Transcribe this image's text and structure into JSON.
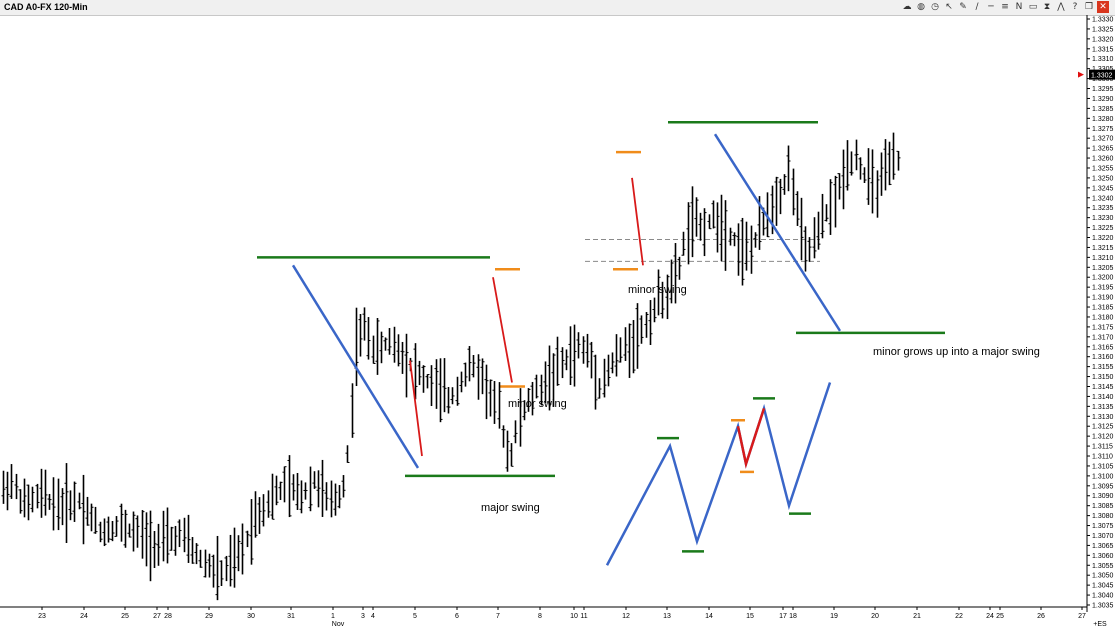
{
  "window": {
    "title": "CAD A0-FX 120-Min"
  },
  "toolbar": {
    "icons": [
      "cloud-icon",
      "globe-icon",
      "clock-icon",
      "cursor-icon",
      "pencil-icon",
      "brush-icon",
      "line-icon",
      "fib-icon",
      "text-n-icon",
      "rectangle-icon",
      "hourglass-icon",
      "chart-icon",
      "help-icon",
      "restore-icon",
      "close-icon"
    ],
    "glyphs": [
      "☁",
      "◍",
      "◷",
      "↖",
      "✎",
      "∕",
      "─",
      "≡",
      "N",
      "▭",
      "⧗",
      "⋀",
      "?",
      "❐",
      "✕"
    ]
  },
  "chart_data": {
    "type": "bar",
    "title": "CAD A0-FX 120-Min",
    "y_axis": {
      "side": "right",
      "ylim": [
        1.3035,
        1.3332
      ],
      "ticks": [
        "1.3035",
        "1.3040",
        "1.3045",
        "1.3050",
        "1.3055",
        "1.3060",
        "1.3065",
        "1.3070",
        "1.3075",
        "1.3080",
        "1.3085",
        "1.3090",
        "1.3095",
        "1.3100",
        "1.3105",
        "1.3110",
        "1.3115",
        "1.3120",
        "1.3125",
        "1.3130",
        "1.3135",
        "1.3140",
        "1.3145",
        "1.3150",
        "1.3155",
        "1.3160",
        "1.3165",
        "1.3170",
        "1.3175",
        "1.3180",
        "1.3185",
        "1.3190",
        "1.3195",
        "1.3200",
        "1.3205",
        "1.3210",
        "1.3215",
        "1.3220",
        "1.3225",
        "1.3230",
        "1.3235",
        "1.3240",
        "1.3245",
        "1.3250",
        "1.3255",
        "1.3260",
        "1.3265",
        "1.3270",
        "1.3275",
        "1.3280",
        "1.3285",
        "1.3290",
        "1.3295",
        "1.3300",
        "1.3305",
        "1.3310",
        "1.3315",
        "1.3320",
        "1.3325",
        "1.3330"
      ],
      "last_price": "1.3302"
    },
    "x_axis": {
      "ticks": [
        "23",
        "24",
        "25",
        "27",
        "28",
        "29",
        "30",
        "31",
        "1",
        "3",
        "4",
        "5",
        "6",
        "7",
        "8",
        "10",
        "11",
        "12",
        "13",
        "14",
        "15",
        "17",
        "18",
        "19",
        "20",
        "21",
        "22",
        "24",
        "25",
        "26",
        "27"
      ],
      "month_label": "Nov",
      "corner_label": "+ES"
    },
    "price_path": [
      [
        0,
        1.309
      ],
      [
        10,
        1.3098
      ],
      [
        25,
        1.3085
      ],
      [
        40,
        1.309
      ],
      [
        60,
        1.3085
      ],
      [
        80,
        1.3088
      ],
      [
        100,
        1.3072
      ],
      [
        120,
        1.3075
      ],
      [
        140,
        1.307
      ],
      [
        160,
        1.3065
      ],
      [
        180,
        1.307
      ],
      [
        200,
        1.3058
      ],
      [
        220,
        1.305
      ],
      [
        240,
        1.306
      ],
      [
        255,
        1.308
      ],
      [
        270,
        1.3088
      ],
      [
        285,
        1.3095
      ],
      [
        300,
        1.309
      ],
      [
        315,
        1.3098
      ],
      [
        330,
        1.3085
      ],
      [
        342,
        1.3092
      ],
      [
        350,
        1.312
      ],
      [
        355,
        1.3165
      ],
      [
        365,
        1.3175
      ],
      [
        375,
        1.3162
      ],
      [
        390,
        1.3168
      ],
      [
        405,
        1.316
      ],
      [
        420,
        1.315
      ],
      [
        435,
        1.3145
      ],
      [
        450,
        1.3138
      ],
      [
        460,
        1.3148
      ],
      [
        470,
        1.3155
      ],
      [
        480,
        1.3152
      ],
      [
        490,
        1.314
      ],
      [
        500,
        1.313
      ],
      [
        505,
        1.3115
      ],
      [
        510,
        1.311
      ],
      [
        520,
        1.313
      ],
      [
        535,
        1.3142
      ],
      [
        550,
        1.315
      ],
      [
        565,
        1.3158
      ],
      [
        580,
        1.3165
      ],
      [
        590,
        1.316
      ],
      [
        600,
        1.3145
      ],
      [
        610,
        1.3155
      ],
      [
        625,
        1.3165
      ],
      [
        640,
        1.3172
      ],
      [
        650,
        1.318
      ],
      [
        660,
        1.319
      ],
      [
        670,
        1.3195
      ],
      [
        678,
        1.3202
      ],
      [
        685,
        1.322
      ],
      [
        690,
        1.3228
      ],
      [
        700,
        1.3225
      ],
      [
        715,
        1.323
      ],
      [
        730,
        1.3222
      ],
      [
        745,
        1.3212
      ],
      [
        755,
        1.3218
      ],
      [
        765,
        1.323
      ],
      [
        775,
        1.324
      ],
      [
        785,
        1.3248
      ],
      [
        790,
        1.3255
      ],
      [
        797,
        1.3232
      ],
      [
        805,
        1.3212
      ],
      [
        815,
        1.3218
      ],
      [
        825,
        1.3232
      ],
      [
        835,
        1.3238
      ],
      [
        845,
        1.3255
      ],
      [
        855,
        1.3262
      ],
      [
        865,
        1.325
      ],
      [
        875,
        1.3245
      ],
      [
        885,
        1.3252
      ],
      [
        895,
        1.3258
      ],
      [
        905,
        1.3262
      ],
      [
        915,
        1.3258
      ],
      [
        925,
        1.3245
      ],
      [
        935,
        1.3235
      ],
      [
        945,
        1.3225
      ],
      [
        955,
        1.322
      ],
      [
        965,
        1.3212
      ],
      [
        975,
        1.3208
      ],
      [
        985,
        1.3212
      ],
      [
        995,
        1.3205
      ],
      [
        1005,
        1.32
      ],
      [
        1015,
        1.321
      ],
      [
        1022,
        1.3225
      ],
      [
        1028,
        1.3255
      ],
      [
        1035,
        1.3265
      ],
      [
        1045,
        1.3275
      ],
      [
        1055,
        1.329
      ],
      [
        1062,
        1.33
      ],
      [
        1068,
        1.3312
      ],
      [
        1075,
        1.3305
      ]
    ],
    "swing_levels": [
      {
        "kind": "major",
        "color": "#1a7a1a",
        "price": 1.321,
        "x": [
          257,
          490
        ]
      },
      {
        "kind": "major",
        "color": "#1a7a1a",
        "price": 1.31,
        "x": [
          405,
          555
        ]
      },
      {
        "kind": "minor",
        "color": "#f08c1a",
        "price": 1.3204,
        "x": [
          495,
          520
        ]
      },
      {
        "kind": "minor",
        "color": "#f08c1a",
        "price": 1.3145,
        "x": [
          500,
          525
        ]
      },
      {
        "kind": "minor",
        "color": "#f08c1a",
        "price": 1.3263,
        "x": [
          616,
          641
        ]
      },
      {
        "kind": "minor",
        "color": "#f08c1a",
        "price": 1.3204,
        "x": [
          613,
          638
        ]
      },
      {
        "kind": "major",
        "color": "#1a7a1a",
        "price": 1.3278,
        "x": [
          668,
          818
        ]
      },
      {
        "kind": "major",
        "color": "#1a7a1a",
        "price": 1.3172,
        "x": [
          796,
          945
        ]
      }
    ],
    "dashed_levels": [
      {
        "price": 1.3219,
        "x": [
          585,
          820
        ]
      },
      {
        "price": 1.3208,
        "x": [
          585,
          820
        ]
      }
    ],
    "trendlines": [
      {
        "color": "#3a66c8",
        "from": [
          293,
          1.3206
        ],
        "to": [
          418,
          1.3104
        ]
      },
      {
        "color": "#d81a1a",
        "from": [
          410,
          1.3158
        ],
        "to": [
          422,
          1.311
        ]
      },
      {
        "color": "#d81a1a",
        "from": [
          493,
          1.32
        ],
        "to": [
          512,
          1.3147
        ]
      },
      {
        "color": "#d81a1a",
        "from": [
          632,
          1.325
        ],
        "to": [
          643,
          1.3206
        ]
      },
      {
        "color": "#3a66c8",
        "from": [
          715,
          1.3272
        ],
        "to": [
          840,
          1.3173
        ]
      }
    ],
    "annotations": [
      {
        "text": "major swing"
      },
      {
        "text": "minor swing"
      },
      {
        "text": "minor swing"
      },
      {
        "text": "minor grows up into a major swing"
      }
    ],
    "inset_diagram": {
      "blue_path": [
        [
          607,
          1.3055
        ],
        [
          670,
          1.3115
        ],
        [
          697,
          1.3067
        ],
        [
          738,
          1.3125
        ],
        [
          746,
          1.3106
        ],
        [
          764,
          1.3134
        ],
        [
          789,
          1.3085
        ],
        [
          830,
          1.3147
        ]
      ],
      "red_path": [
        [
          738,
          1.3125
        ],
        [
          746,
          1.3106
        ],
        [
          764,
          1.3134
        ]
      ],
      "markers": [
        {
          "color": "#1a7a1a",
          "price": 1.3119,
          "x": [
            657,
            679
          ]
        },
        {
          "color": "#1a7a1a",
          "price": 1.3062,
          "x": [
            682,
            704
          ]
        },
        {
          "color": "#f08c1a",
          "price": 1.3128,
          "x": [
            731,
            745
          ]
        },
        {
          "color": "#f08c1a",
          "price": 1.3102,
          "x": [
            740,
            754
          ]
        },
        {
          "color": "#1a7a1a",
          "price": 1.3139,
          "x": [
            753,
            775
          ]
        },
        {
          "color": "#1a7a1a",
          "price": 1.3081,
          "x": [
            789,
            811
          ]
        }
      ]
    }
  }
}
